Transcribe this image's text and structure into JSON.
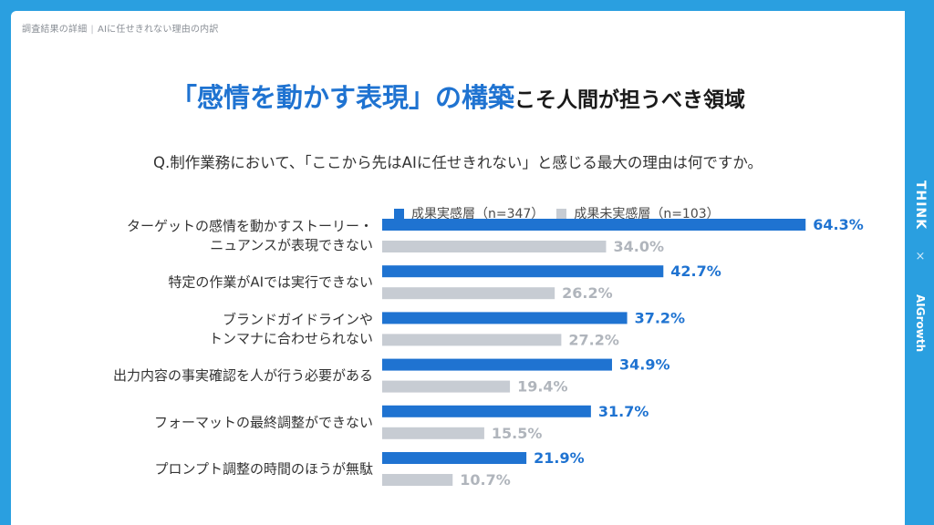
{
  "breadcrumb": {
    "section": "調査結果の詳細",
    "topic": "AIに任せきれない理由の内訳"
  },
  "title": {
    "highlight": "「感情を動かす表現」の構築",
    "rest": "こそ人間が担うべき領域"
  },
  "question": "Q.制作業務において、「ここから先はAIに任せきれない」と感じる最大の理由は何ですか。",
  "side_logo": {
    "think": "THINK",
    "cross": "×",
    "ai_growth": "AIGrowth"
  },
  "colors": {
    "background": "#2a9fe0",
    "primary": "#1f73d1",
    "secondary": "#c7ccd3",
    "secondary_text": "#b0b5bc"
  },
  "chart_data": {
    "type": "bar",
    "orientation": "horizontal",
    "categories": [
      [
        "ターゲットの感情を動かすストーリー・",
        "ニュアンスが表現できない"
      ],
      [
        "特定の作業がAIでは実行できない"
      ],
      [
        "ブランドガイドラインや",
        "トンマナに合わせられない"
      ],
      [
        "出力内容の事実確認を人が行う必要がある"
      ],
      [
        "フォーマットの最終調整ができない"
      ],
      [
        "プロンプト調整の時間のほうが無駄"
      ]
    ],
    "series": [
      {
        "name": "成果実感層（n=347）",
        "values": [
          64.3,
          42.7,
          37.2,
          34.9,
          31.7,
          21.9
        ],
        "labels": [
          "64.3%",
          "42.7%",
          "37.2%",
          "34.9%",
          "31.7%",
          "21.9%"
        ]
      },
      {
        "name": "成果未実感層（n=103）",
        "values": [
          34.0,
          26.2,
          27.2,
          19.4,
          15.5,
          10.7
        ],
        "labels": [
          "34.0%",
          "26.2%",
          "27.2%",
          "19.4%",
          "15.5%",
          "10.7%"
        ]
      }
    ],
    "xlim": [
      0,
      100
    ],
    "legend_position": "top",
    "grid": false
  }
}
